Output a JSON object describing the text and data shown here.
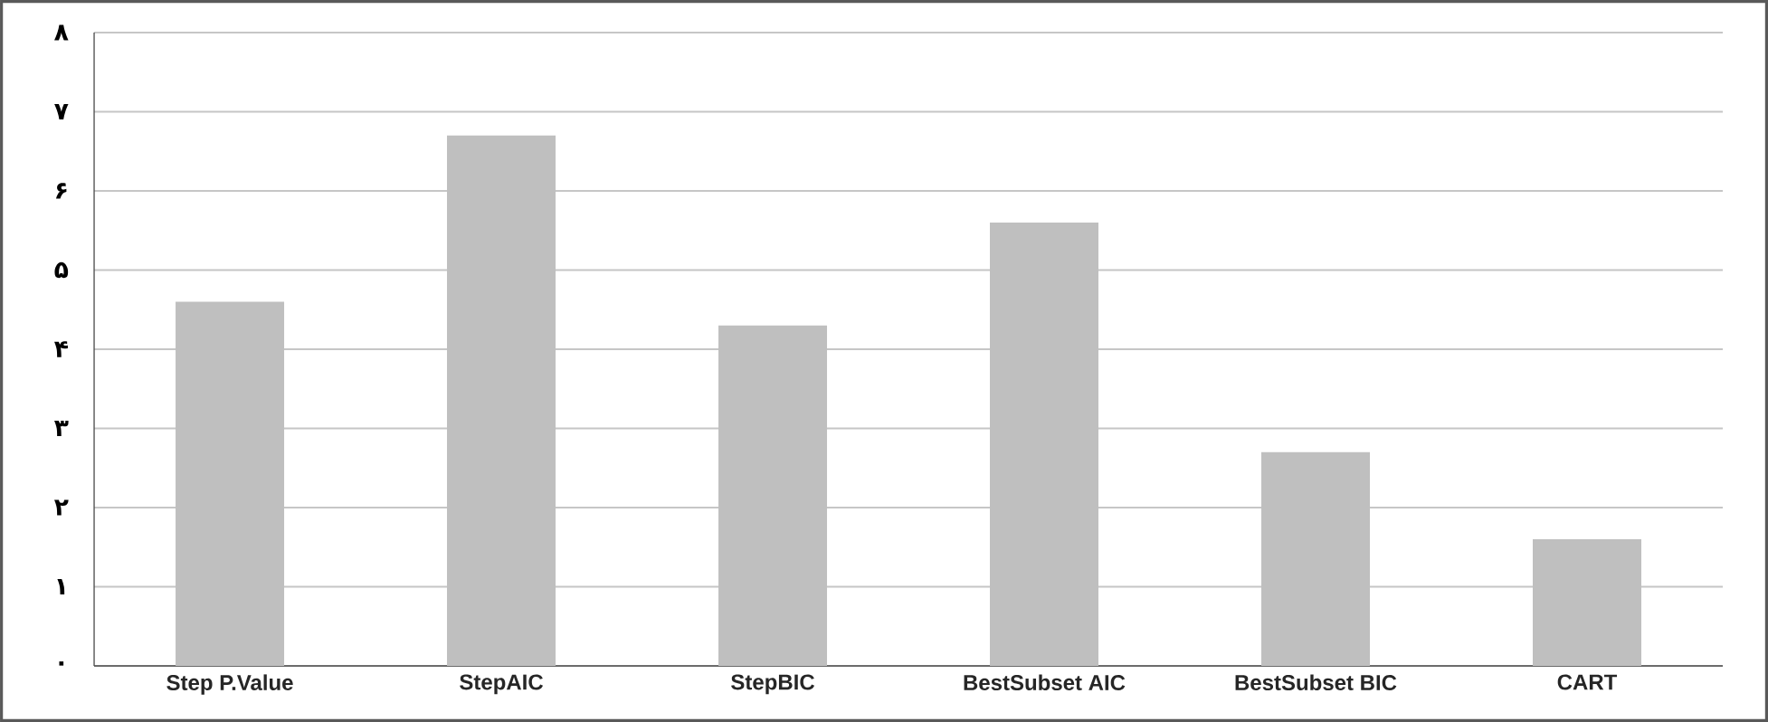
{
  "chart_data": {
    "type": "bar",
    "categories": [
      "Step P.Value",
      "StepAIC",
      "StepBIC",
      "BestSubset AIC",
      "BestSubset BIC",
      "CART"
    ],
    "values": [
      4.6,
      6.7,
      4.3,
      5.6,
      2.7,
      1.6
    ],
    "color": "#bfbfbf",
    "ylim": [
      0,
      8
    ],
    "yticks": [
      {
        "value": 0,
        "label": "۰"
      },
      {
        "value": 1,
        "label": "۱"
      },
      {
        "value": 2,
        "label": "۲"
      },
      {
        "value": 3,
        "label": "۳"
      },
      {
        "value": 4,
        "label": "۴"
      },
      {
        "value": 5,
        "label": "۵"
      },
      {
        "value": 6,
        "label": "۶"
      },
      {
        "value": 7,
        "label": "۷"
      },
      {
        "value": 8,
        "label": "۸"
      }
    ],
    "grid": "y"
  }
}
